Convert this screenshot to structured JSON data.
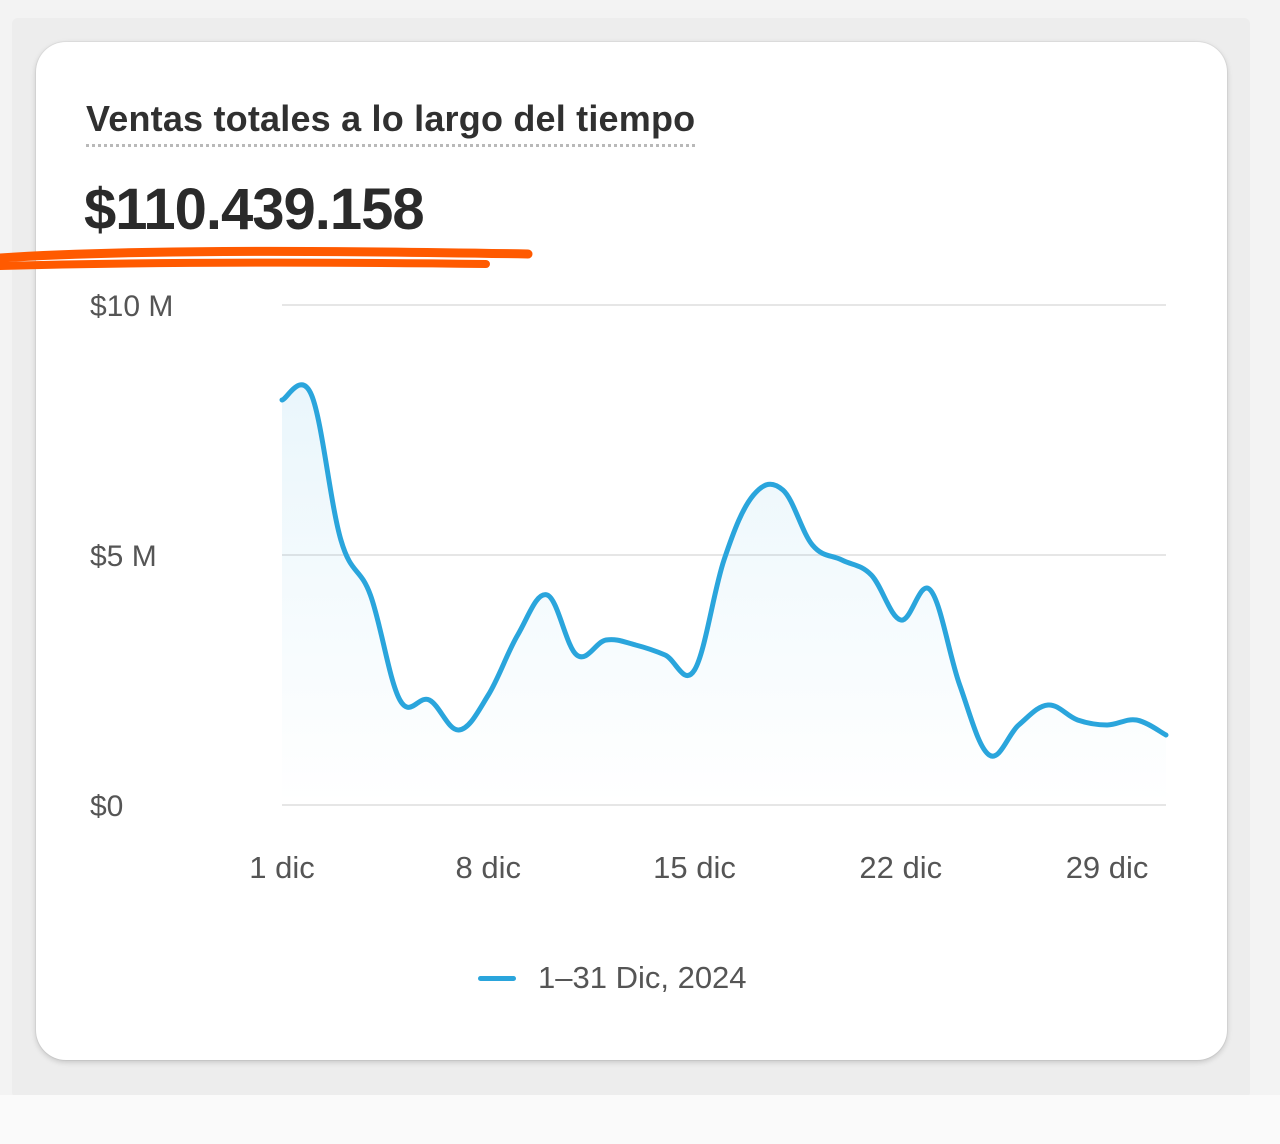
{
  "card": {
    "title": "Ventas totales a lo largo del tiempo",
    "total": "$110.439.158",
    "highlight_color": "#ff5a00"
  },
  "legend": {
    "label": "1–31 Dic, 2024",
    "color": "#2aa5dc"
  },
  "chart_data": {
    "type": "line",
    "title": "Ventas totales a lo largo del tiempo",
    "xlabel": "",
    "ylabel": "",
    "ylim": [
      0,
      10000000
    ],
    "yticks": [
      0,
      5000000,
      10000000
    ],
    "ytick_labels": [
      "$0",
      "$5 M",
      "$10 M"
    ],
    "xlim": [
      1,
      31
    ],
    "xticks": [
      1,
      8,
      15,
      22,
      29
    ],
    "xtick_labels": [
      "1 dic",
      "8 dic",
      "15 dic",
      "22 dic",
      "29 dic"
    ],
    "grid": true,
    "legend_position": "bottom-center",
    "series": [
      {
        "name": "1–31 Dic, 2024",
        "color": "#2aa5dc",
        "x": [
          1,
          2,
          3,
          4,
          5,
          6,
          7,
          8,
          9,
          10,
          11,
          12,
          13,
          14,
          15,
          16,
          17,
          18,
          19,
          20,
          21,
          22,
          23,
          24,
          25,
          26,
          27,
          28,
          29,
          30,
          31
        ],
        "values": [
          8100000,
          8200000,
          5300000,
          4200000,
          2100000,
          2100000,
          1500000,
          2200000,
          3400000,
          4200000,
          3000000,
          3300000,
          3200000,
          3000000,
          2700000,
          4900000,
          6200000,
          6300000,
          5200000,
          4900000,
          4600000,
          3700000,
          4300000,
          2400000,
          1000000,
          1600000,
          2000000,
          1700000,
          1600000,
          1700000,
          1400000
        ]
      }
    ]
  }
}
